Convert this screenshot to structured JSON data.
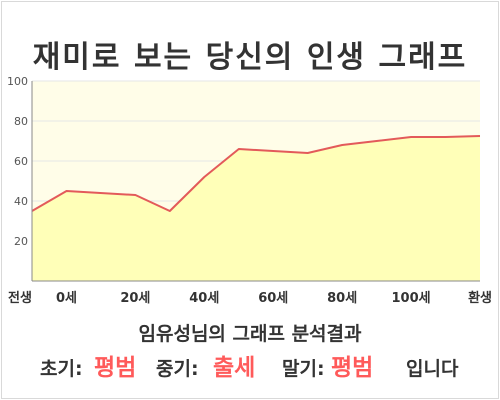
{
  "title": "재미로 보는 당신의 인생 그래프",
  "subtitle": "임유성님의 그래프 분석결과",
  "result": {
    "early_label": "초기:",
    "early_value": "평범",
    "middle_label": "중기:",
    "middle_value": "출세",
    "late_label": "말기:",
    "late_value": "평범",
    "ending": "입니다"
  },
  "colors": {
    "line": "#e35a5a",
    "fill": "#ffffb8",
    "plot_bg": "#fffde8",
    "grid": "#e6e6e6",
    "accent": "#ff5a5a"
  },
  "chart_data": {
    "type": "area",
    "ylim": [
      0,
      100
    ],
    "yticks": [
      20,
      40,
      60,
      80,
      100
    ],
    "x": [
      -10,
      0,
      20,
      30,
      40,
      50,
      60,
      70,
      80,
      90,
      100,
      110,
      120
    ],
    "xlim": [
      -10,
      120
    ],
    "xticks": [
      {
        "value": -10,
        "label": "전생"
      },
      {
        "value": 0,
        "label": "0세"
      },
      {
        "value": 20,
        "label": "20세"
      },
      {
        "value": 40,
        "label": "40세"
      },
      {
        "value": 60,
        "label": "60세"
      },
      {
        "value": 80,
        "label": "80세"
      },
      {
        "value": 100,
        "label": "100세"
      },
      {
        "value": 120,
        "label": "환생"
      }
    ],
    "values": [
      35,
      45,
      43,
      35,
      52,
      66,
      65,
      64,
      68,
      70,
      72,
      72,
      72.5
    ],
    "grid": true
  }
}
